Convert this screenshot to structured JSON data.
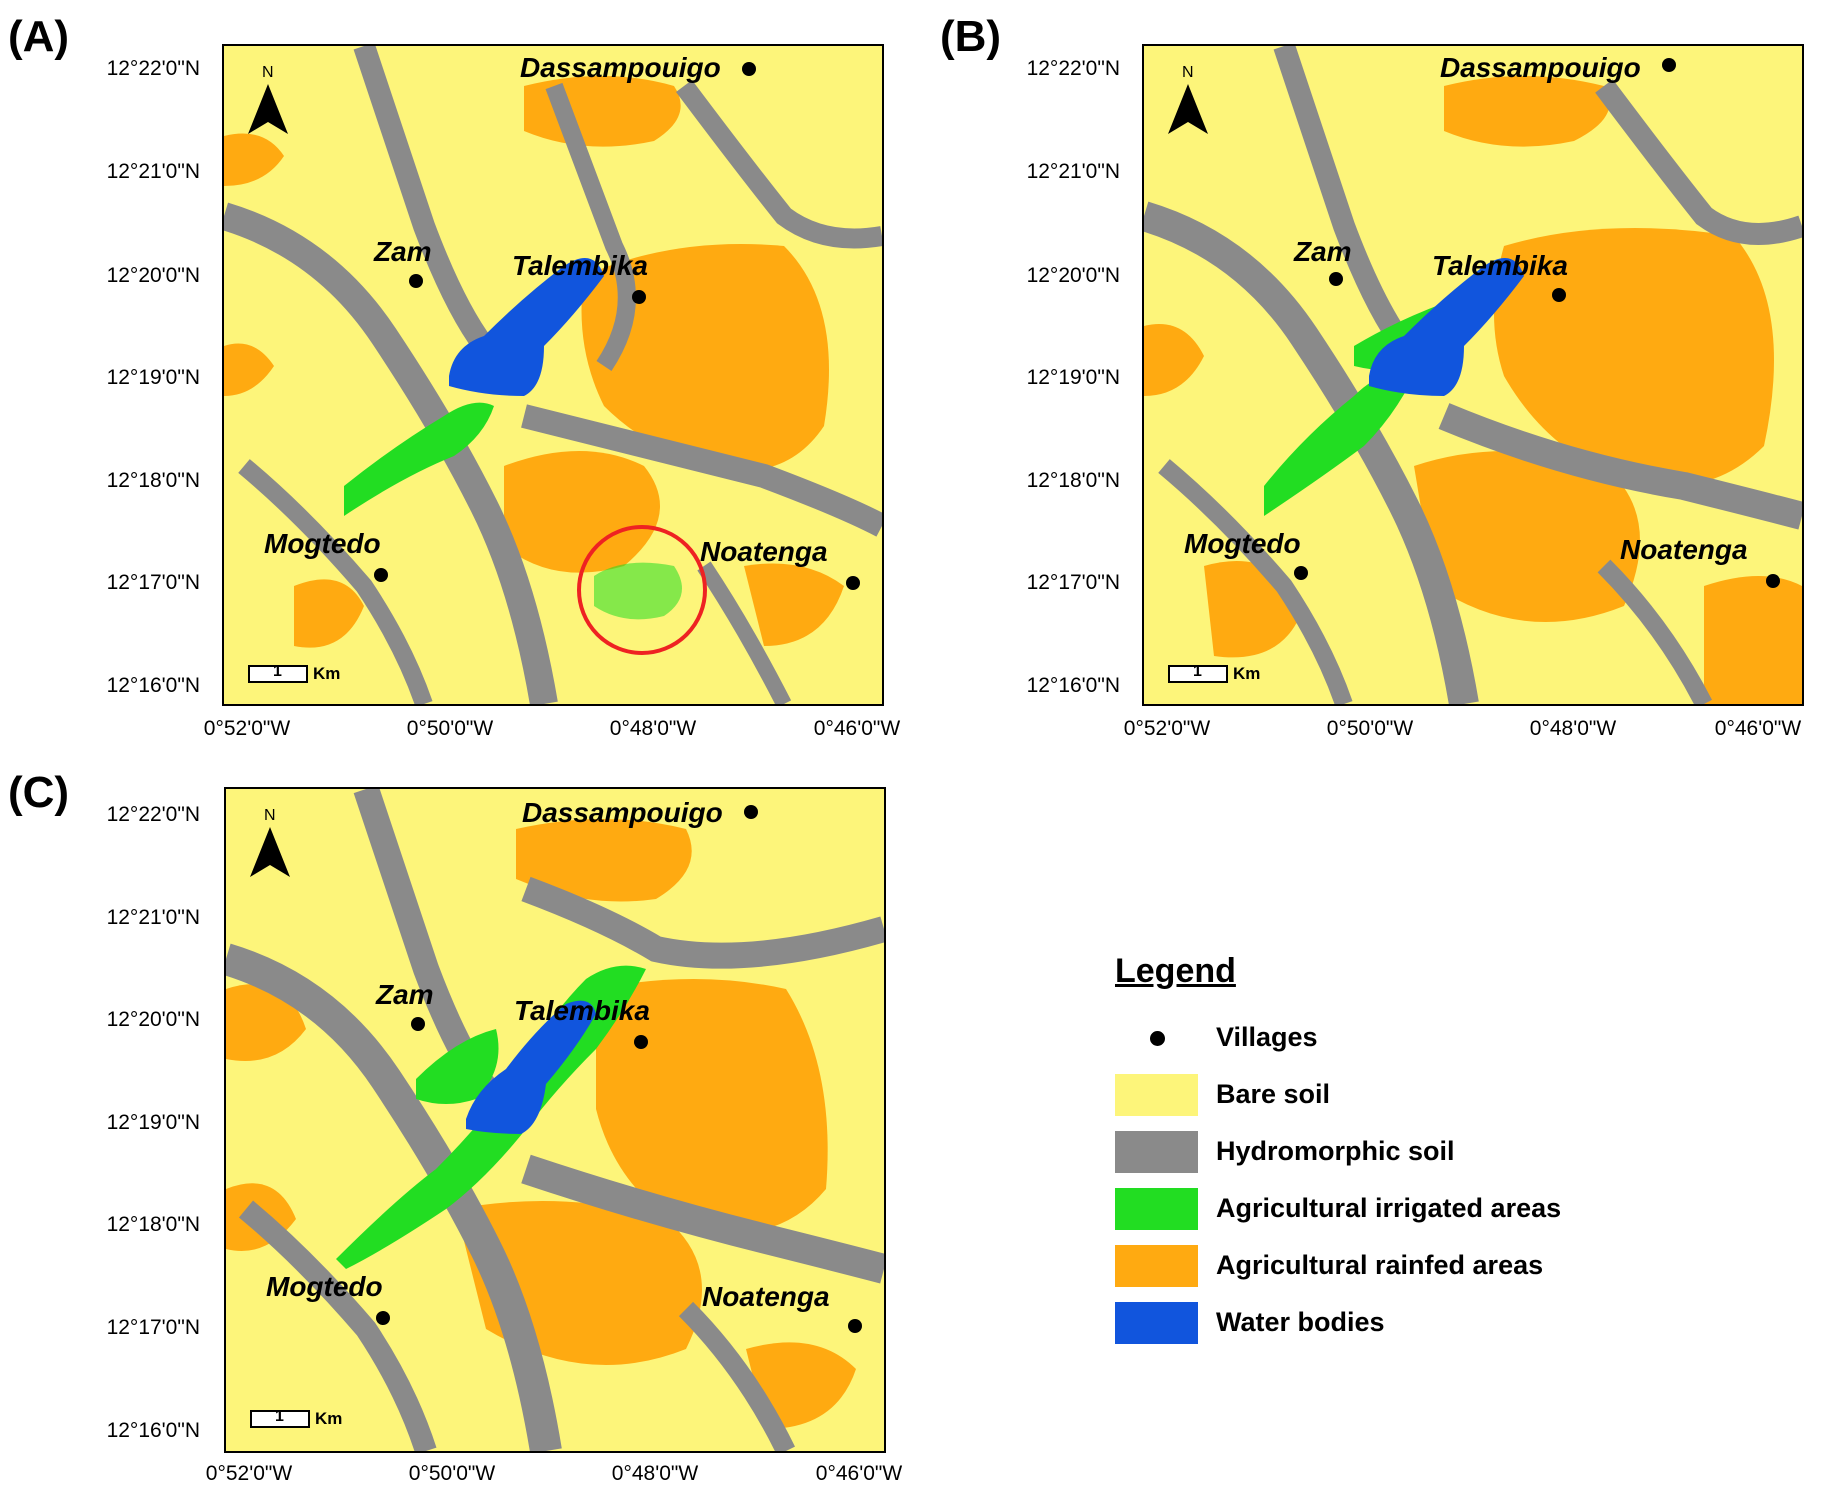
{
  "colors": {
    "bare_soil": "#fdf57a",
    "hydromorphic_soil": "#8a8a8a",
    "irrigated": "#22dd22",
    "rainfed": "#ffaa11",
    "water": "#1155dd",
    "highlight_circle": "#ee2222"
  },
  "panels": [
    {
      "label": "(A)"
    },
    {
      "label": "(B)"
    },
    {
      "label": "(C)"
    }
  ],
  "lat_labels": [
    "12°22'0\"N",
    "12°21'0\"N",
    "12°20'0\"N",
    "12°19'0\"N",
    "12°18'0\"N",
    "12°17'0\"N",
    "12°16'0\"N"
  ],
  "lon_labels": [
    "0°52'0\"W",
    "0°50'0\"W",
    "0°48'0\"W",
    "0°46'0\"W"
  ],
  "villages": [
    "Dassampouigo",
    "Zam",
    "Talembika",
    "Mogtedo",
    "Noatenga"
  ],
  "north_letter": "N",
  "scale": {
    "value": "1",
    "unit": "Km"
  },
  "legend": {
    "title": "Legend",
    "items": [
      {
        "label": "Villages",
        "kind": "dot"
      },
      {
        "label": "Bare soil",
        "color": "#fdf57a"
      },
      {
        "label": "Hydromorphic soil",
        "color": "#8a8a8a"
      },
      {
        "label": "Agricultural irrigated areas",
        "color": "#22dd22"
      },
      {
        "label": "Agricultural rainfed areas",
        "color": "#ffaa11"
      },
      {
        "label": "Water bodies",
        "color": "#1155dd"
      }
    ]
  }
}
